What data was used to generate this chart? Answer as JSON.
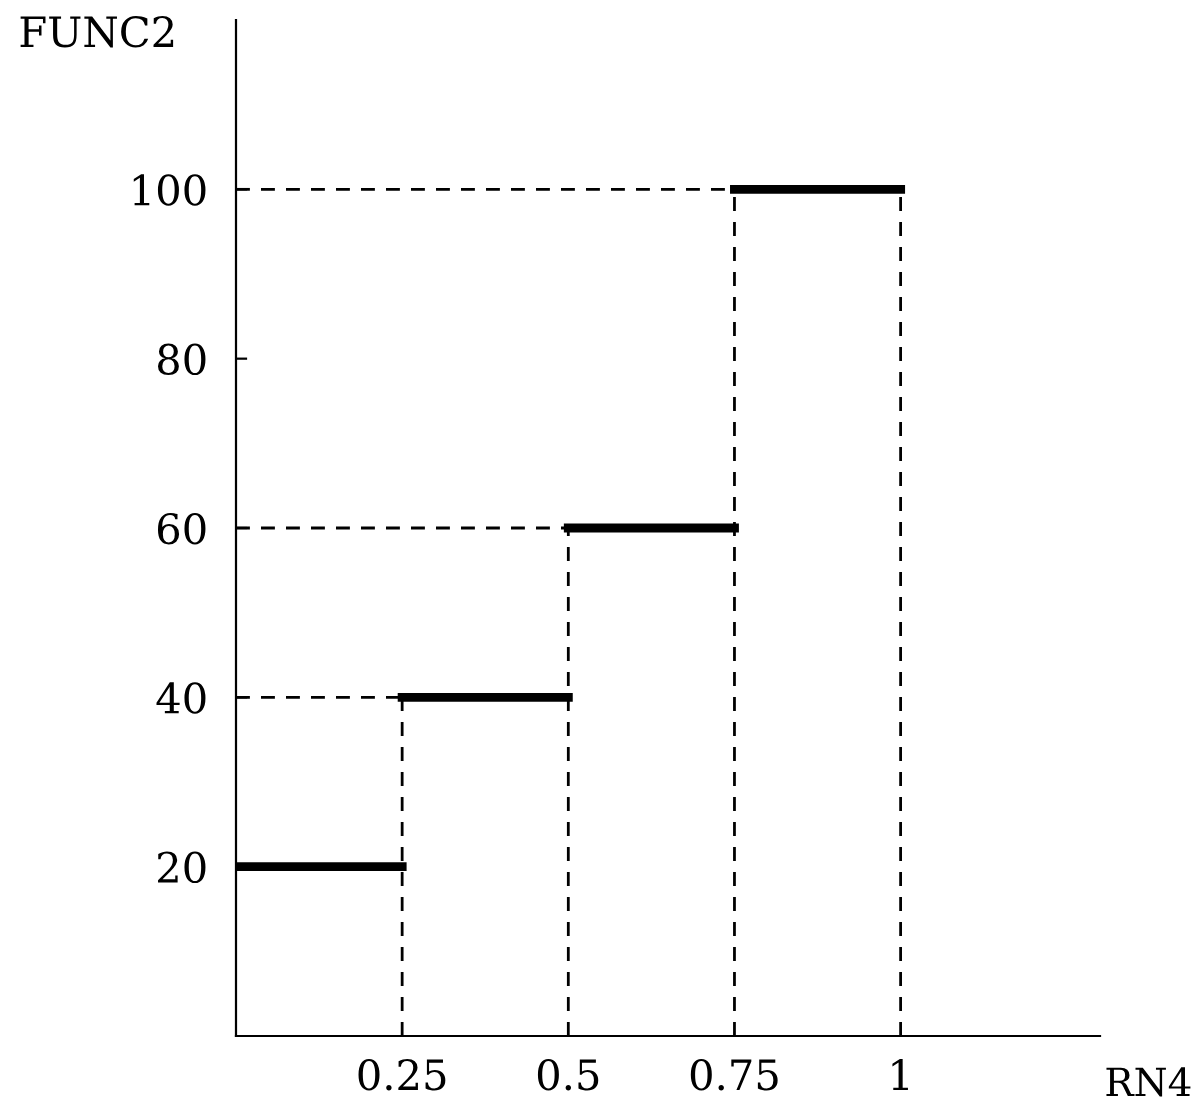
{
  "chart_data": {
    "type": "line",
    "xlabel": "RN4",
    "ylabel": "FUNC2",
    "xlim": [
      0,
      1.3
    ],
    "ylim": [
      0,
      120
    ],
    "xticks": [
      0.25,
      0.5,
      0.75,
      1
    ],
    "yticks": [
      20,
      40,
      60,
      80,
      100
    ],
    "series": [
      {
        "line_style": "solid",
        "color": "#000000",
        "x": [
          0,
          0.25
        ],
        "values": [
          20,
          20
        ]
      },
      {
        "line_style": "solid",
        "color": "#000000",
        "x": [
          0.25,
          0.5
        ],
        "values": [
          40,
          40
        ]
      },
      {
        "line_style": "solid",
        "color": "#000000",
        "x": [
          0.5,
          0.75
        ],
        "values": [
          60,
          60
        ]
      },
      {
        "line_style": "solid",
        "color": "#000000",
        "x": [
          0.75,
          1
        ],
        "values": [
          100,
          100
        ]
      },
      {
        "line_style": "dashed",
        "color": "#000000",
        "x": [
          0,
          0.25
        ],
        "values": [
          40,
          40
        ]
      },
      {
        "line_style": "dashed",
        "color": "#000000",
        "x": [
          0,
          0.5
        ],
        "values": [
          60,
          60
        ]
      },
      {
        "line_style": "dashed",
        "color": "#000000",
        "x": [
          0,
          0.75
        ],
        "values": [
          100,
          100
        ]
      },
      {
        "line_style": "dashed",
        "color": "#000000",
        "x": [
          0.25,
          0.25
        ],
        "values": [
          0,
          40
        ]
      },
      {
        "line_style": "dashed",
        "color": "#000000",
        "x": [
          0.5,
          0.5
        ],
        "values": [
          0,
          60
        ]
      },
      {
        "line_style": "dashed",
        "color": "#000000",
        "x": [
          0.75,
          0.75
        ],
        "values": [
          0,
          100
        ]
      },
      {
        "line_style": "dashed",
        "color": "#000000",
        "x": [
          1,
          1
        ],
        "values": [
          0,
          100
        ]
      }
    ]
  }
}
